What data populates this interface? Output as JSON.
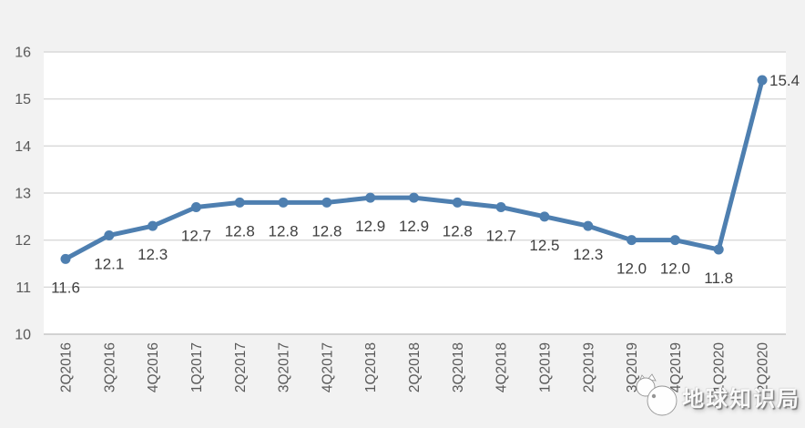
{
  "chart_data": {
    "type": "line",
    "title": "",
    "categories": [
      "2Q2016",
      "3Q2016",
      "4Q2016",
      "1Q2017",
      "2Q2017",
      "3Q2017",
      "4Q2017",
      "1Q2018",
      "2Q2018",
      "3Q2018",
      "4Q2018",
      "1Q2019",
      "2Q2019",
      "3Q2019",
      "4Q2019",
      "1Q2020",
      "2Q2020"
    ],
    "series": [
      {
        "name": "",
        "values": [
          11.6,
          12.1,
          12.3,
          12.7,
          12.8,
          12.8,
          12.8,
          12.9,
          12.9,
          12.8,
          12.7,
          12.5,
          12.3,
          12.0,
          12.0,
          11.8,
          15.4
        ]
      }
    ],
    "data_labels": [
      "11.6",
      "12.1",
      "12.3",
      "12.7",
      "12.8",
      "12.8",
      "12.8",
      "12.9",
      "12.9",
      "12.8",
      "12.7",
      "12.5",
      "12.3",
      "12.0",
      "12.0",
      "11.8",
      "15.4"
    ],
    "ylim": [
      10,
      16
    ],
    "yticks": [
      16,
      15,
      14,
      13,
      12,
      11,
      10
    ],
    "grid": true,
    "legend": "none",
    "marker": "circle",
    "x_tick_rotation": -90,
    "last_label_position": "right"
  },
  "watermark": {
    "text": "地球知识局",
    "logo": "panda-globe-logo"
  },
  "colors": {
    "background": "#f2f2f2",
    "plot_background": "#ffffff",
    "gridline": "#d9d9d9",
    "axis_line": "#c6c6c6",
    "tick_label": "#595959",
    "data_label": "#3f3f3f",
    "line": "#4e7fb0"
  }
}
